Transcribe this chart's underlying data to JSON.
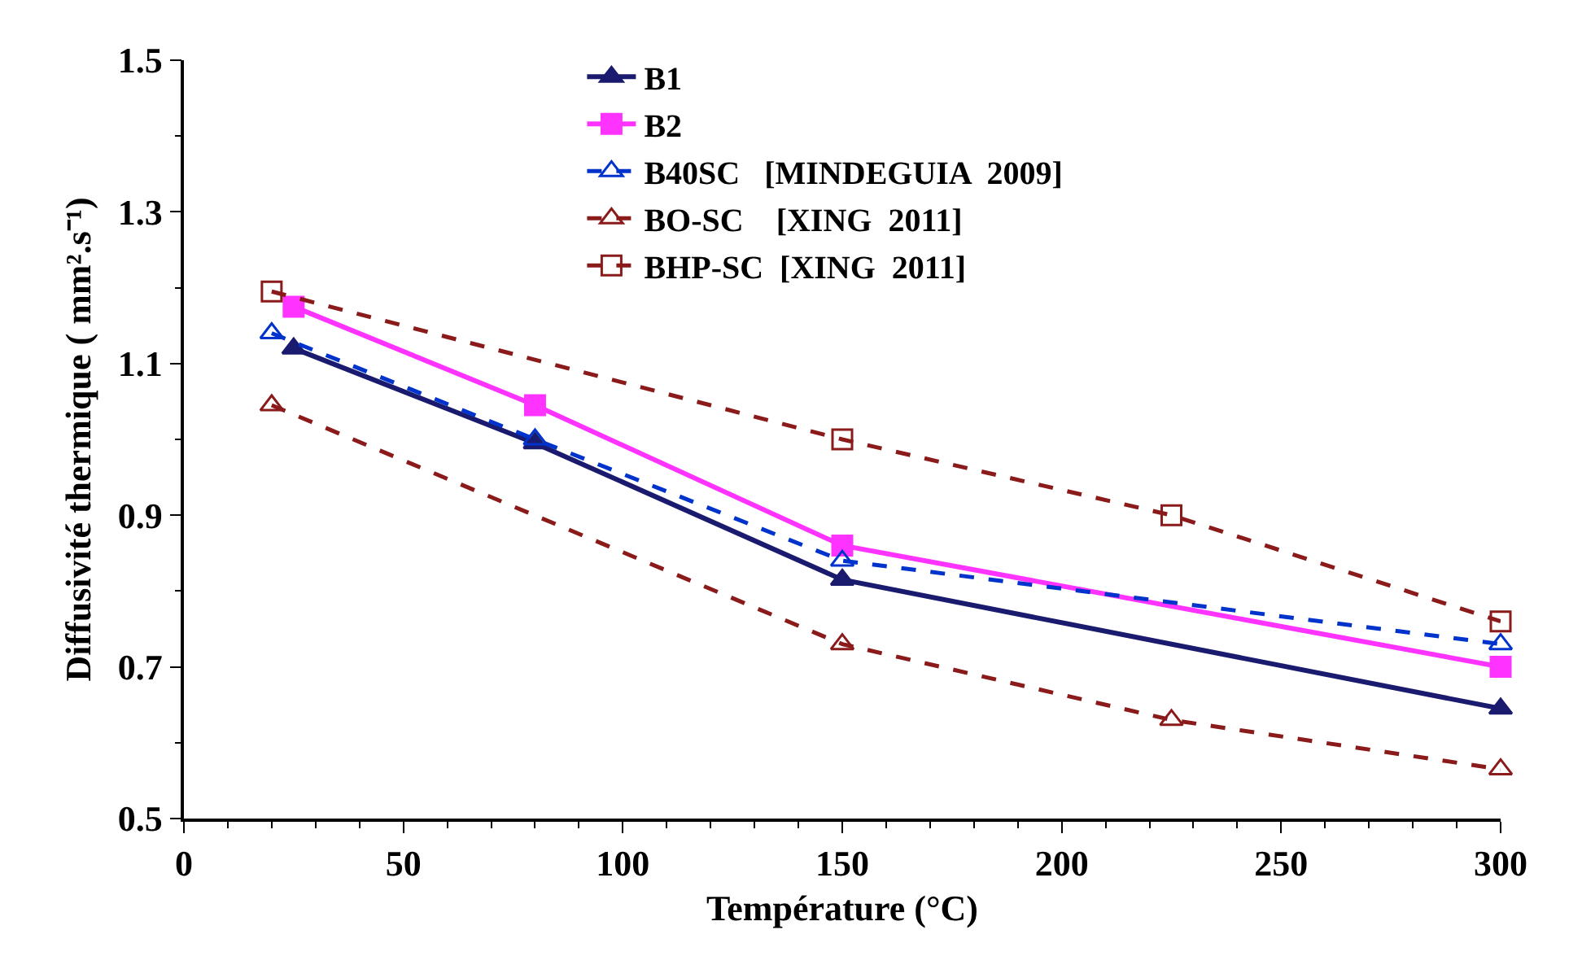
{
  "chart_data": {
    "type": "line",
    "xlabel": "Température (°C)",
    "ylabel": "Diffusivité thermique ( mm².s⁻¹)",
    "xlim": [
      0,
      300
    ],
    "xticks": [
      0,
      50,
      100,
      150,
      200,
      250,
      300
    ],
    "ylim": [
      0.5,
      1.5
    ],
    "yticks": [
      0.5,
      0.7,
      0.9,
      1.1,
      1.3,
      1.5
    ],
    "grid": false,
    "legend": "top",
    "series": [
      {
        "name": "B1",
        "color": "#1a1a6e",
        "marker": "triangle",
        "line_style": "solid",
        "x": [
          25,
          80,
          150,
          300
        ],
        "values": [
          1.12,
          0.995,
          0.815,
          0.645
        ]
      },
      {
        "name": "B2",
        "color": "#ff33ff",
        "marker": "square",
        "line_style": "solid",
        "x": [
          25,
          80,
          150,
          300
        ],
        "values": [
          1.175,
          1.045,
          0.86,
          0.7
        ]
      },
      {
        "name": "B40SC   [MINDEGUIA  2009]",
        "color": "#0033cc",
        "marker": "triangle",
        "line_style": "dashed",
        "x": [
          20,
          80,
          150,
          300
        ],
        "values": [
          1.14,
          1.0,
          0.84,
          0.73
        ]
      },
      {
        "name": "BO-SC    [XING  2011]",
        "color": "#8b1a1a",
        "marker": "triangle",
        "line_style": "dashed",
        "x": [
          20,
          150,
          225,
          300
        ],
        "values": [
          1.045,
          0.73,
          0.63,
          0.565
        ]
      },
      {
        "name": "BHP-SC  [XING  2011]",
        "color": "#8b1a1a",
        "marker": "square",
        "line_style": "dashed",
        "x": [
          20,
          150,
          225,
          300
        ],
        "values": [
          1.195,
          1.0,
          0.9,
          0.76
        ]
      }
    ]
  }
}
